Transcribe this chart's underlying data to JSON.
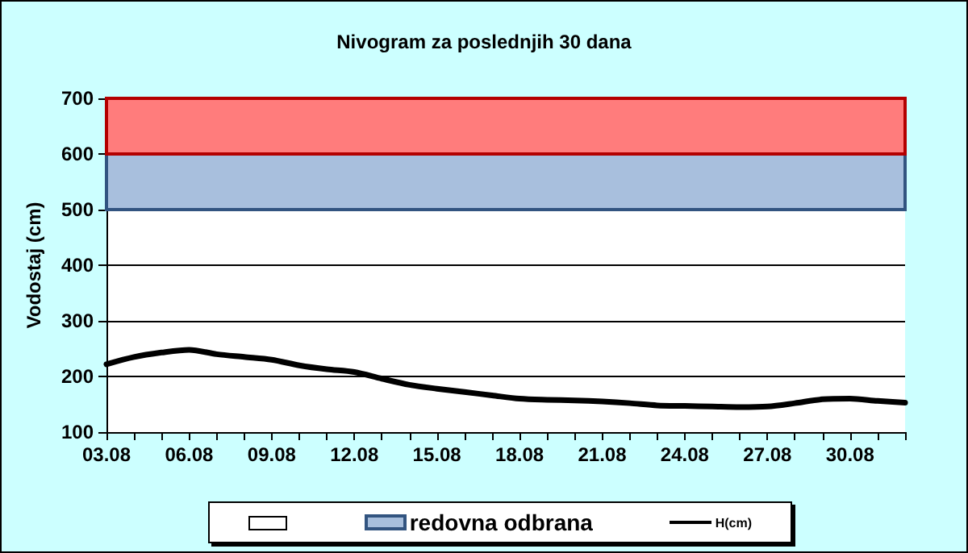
{
  "chart_data": {
    "type": "line",
    "title": "Nivogram za poslednjih 30 dana",
    "ylabel": "Vodostaj (cm)",
    "categories": [
      "03.08",
      null,
      null,
      "06.08",
      null,
      null,
      "09.08",
      null,
      null,
      "12.08",
      null,
      null,
      "15.08",
      null,
      null,
      "18.08",
      null,
      null,
      "21.08",
      null,
      null,
      "24.08",
      null,
      null,
      "27.08",
      null,
      null,
      "30.08",
      null,
      null
    ],
    "series": [
      {
        "name": "H(cm)",
        "color": "#000000",
        "values": [
          222,
          235,
          243,
          248,
          240,
          235,
          230,
          220,
          213,
          208,
          196,
          185,
          178,
          172,
          166,
          160,
          158,
          157,
          155,
          152,
          148,
          147,
          146,
          145,
          146,
          152,
          159,
          160,
          156,
          153
        ]
      }
    ],
    "bands": [
      {
        "axis": "y",
        "from": 500,
        "to": 600,
        "label": "redovna odbrana",
        "color": "#a8bfdd"
      },
      {
        "axis": "y",
        "from": 600,
        "to": 700,
        "color": "#ff7c7c"
      }
    ],
    "ylim": [
      100,
      700
    ],
    "yticks": [
      100,
      200,
      300,
      400,
      500,
      600,
      700
    ],
    "grid": "y",
    "legend": "bottom",
    "marker": "none",
    "line_style": "solid"
  }
}
